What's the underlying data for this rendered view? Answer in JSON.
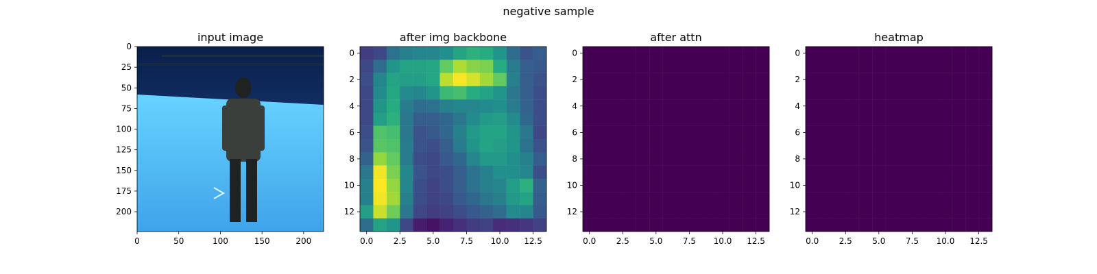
{
  "suptitle": "negative sample",
  "chart_data": [
    {
      "type": "image",
      "title": "input image",
      "image_extent": [
        224,
        224
      ],
      "xlim": [
        0,
        224
      ],
      "ylim": [
        224,
        0
      ],
      "xticks": [
        0,
        50,
        100,
        150,
        200
      ],
      "yticks": [
        0,
        25,
        50,
        75,
        100,
        125,
        150,
        175,
        200
      ],
      "xtick_labels": [
        "0",
        "50",
        "100",
        "150",
        "200"
      ],
      "ytick_labels": [
        "0",
        "25",
        "50",
        "75",
        "100",
        "125",
        "150",
        "175",
        "200"
      ],
      "colors": {
        "background_top": "#0a1e4a",
        "wall": "#1f4f95",
        "floor": "#3fa3ea",
        "floor_bright": "#67d3ff",
        "person": "#3b3f3b",
        "person_dark": "#1f2220"
      }
    },
    {
      "type": "heatmap",
      "title": "after img backbone",
      "colormap": "viridis",
      "vmin": 0,
      "vmax": 1,
      "xlim": [
        -0.5,
        13.5
      ],
      "ylim": [
        13.5,
        -0.5
      ],
      "xticks": [
        0.0,
        2.5,
        5.0,
        7.5,
        10.0,
        12.5
      ],
      "yticks": [
        0,
        2,
        4,
        6,
        8,
        10,
        12
      ],
      "xtick_labels": [
        "0.0",
        "2.5",
        "5.0",
        "7.5",
        "10.0",
        "12.5"
      ],
      "ytick_labels": [
        "0",
        "2",
        "4",
        "6",
        "8",
        "10",
        "12"
      ],
      "matrix": [
        [
          0.18,
          0.22,
          0.38,
          0.44,
          0.46,
          0.46,
          0.5,
          0.58,
          0.64,
          0.62,
          0.52,
          0.36,
          0.26,
          0.3
        ],
        [
          0.22,
          0.36,
          0.52,
          0.58,
          0.58,
          0.6,
          0.76,
          0.88,
          0.82,
          0.8,
          0.62,
          0.42,
          0.3,
          0.28
        ],
        [
          0.24,
          0.46,
          0.58,
          0.56,
          0.56,
          0.6,
          0.9,
          0.99,
          0.94,
          0.86,
          0.76,
          0.44,
          0.3,
          0.26
        ],
        [
          0.22,
          0.48,
          0.6,
          0.48,
          0.46,
          0.52,
          0.68,
          0.7,
          0.62,
          0.58,
          0.52,
          0.4,
          0.3,
          0.24
        ],
        [
          0.22,
          0.52,
          0.62,
          0.42,
          0.36,
          0.38,
          0.44,
          0.46,
          0.46,
          0.48,
          0.5,
          0.42,
          0.32,
          0.24
        ],
        [
          0.22,
          0.56,
          0.64,
          0.4,
          0.3,
          0.3,
          0.34,
          0.4,
          0.48,
          0.54,
          0.56,
          0.48,
          0.34,
          0.24
        ],
        [
          0.24,
          0.72,
          0.7,
          0.4,
          0.26,
          0.28,
          0.34,
          0.44,
          0.54,
          0.58,
          0.58,
          0.52,
          0.4,
          0.22
        ],
        [
          0.26,
          0.74,
          0.72,
          0.42,
          0.26,
          0.24,
          0.3,
          0.42,
          0.52,
          0.58,
          0.56,
          0.52,
          0.38,
          0.26
        ],
        [
          0.32,
          0.84,
          0.76,
          0.42,
          0.24,
          0.22,
          0.28,
          0.34,
          0.46,
          0.54,
          0.54,
          0.5,
          0.44,
          0.3
        ],
        [
          0.4,
          0.98,
          0.8,
          0.46,
          0.26,
          0.22,
          0.24,
          0.3,
          0.38,
          0.44,
          0.5,
          0.5,
          0.46,
          0.24
        ],
        [
          0.44,
          1.0,
          0.84,
          0.46,
          0.24,
          0.2,
          0.24,
          0.3,
          0.38,
          0.44,
          0.46,
          0.56,
          0.64,
          0.32
        ],
        [
          0.44,
          0.98,
          0.86,
          0.44,
          0.24,
          0.2,
          0.22,
          0.28,
          0.34,
          0.4,
          0.44,
          0.54,
          0.58,
          0.3
        ],
        [
          0.56,
          0.92,
          0.78,
          0.4,
          0.22,
          0.18,
          0.2,
          0.24,
          0.28,
          0.32,
          0.36,
          0.48,
          0.46,
          0.28
        ],
        [
          0.36,
          0.58,
          0.52,
          0.22,
          0.08,
          0.05,
          0.1,
          0.14,
          0.18,
          0.2,
          0.12,
          0.14,
          0.16,
          0.2
        ]
      ]
    },
    {
      "type": "heatmap",
      "title": "after attn",
      "colormap": "viridis",
      "fill_value": 0,
      "xlim": [
        -0.5,
        13.5
      ],
      "ylim": [
        13.5,
        -0.5
      ],
      "xticks": [
        0.0,
        2.5,
        5.0,
        7.5,
        10.0,
        12.5
      ],
      "yticks": [
        0,
        2,
        4,
        6,
        8,
        10,
        12
      ],
      "xtick_labels": [
        "0.0",
        "2.5",
        "5.0",
        "7.5",
        "10.0",
        "12.5"
      ],
      "ytick_labels": [
        "0",
        "2",
        "4",
        "6",
        "8",
        "10",
        "12"
      ]
    },
    {
      "type": "heatmap",
      "title": "heatmap",
      "colormap": "viridis",
      "fill_value": 0,
      "xlim": [
        -0.5,
        13.5
      ],
      "ylim": [
        13.5,
        -0.5
      ],
      "xticks": [
        0.0,
        2.5,
        5.0,
        7.5,
        10.0,
        12.5
      ],
      "yticks": [
        0,
        2,
        4,
        6,
        8,
        10,
        12
      ],
      "xtick_labels": [
        "0.0",
        "2.5",
        "5.0",
        "7.5",
        "10.0",
        "12.5"
      ],
      "ytick_labels": [
        "0",
        "2",
        "4",
        "6",
        "8",
        "10",
        "12"
      ]
    }
  ]
}
